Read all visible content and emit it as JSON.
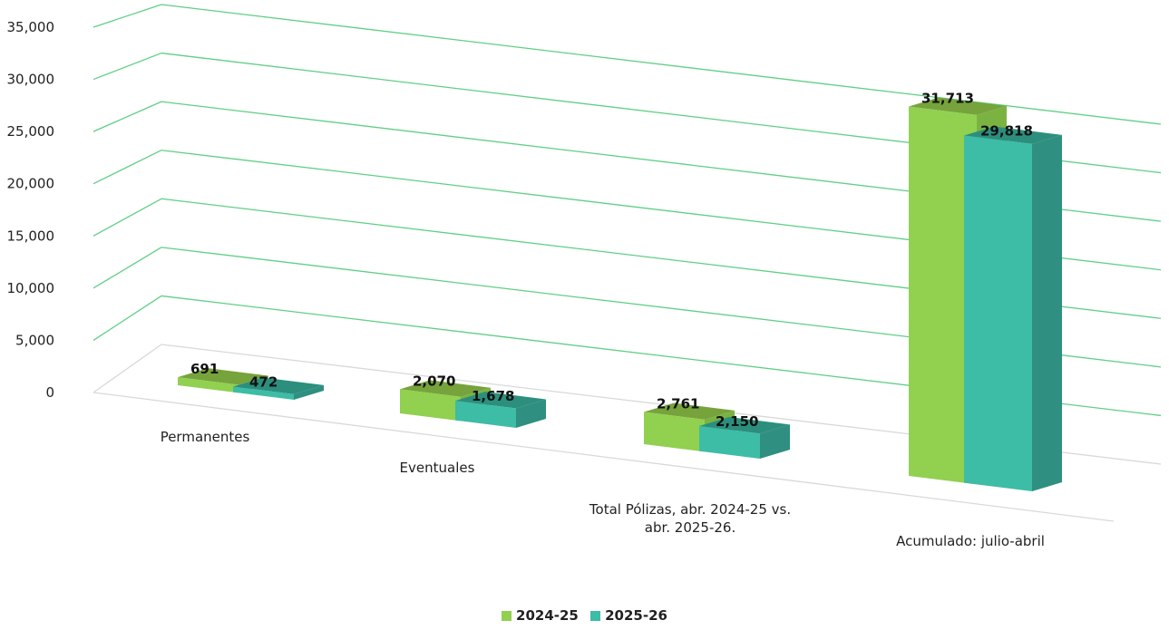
{
  "chart_data": {
    "type": "bar",
    "categories": [
      [
        "Permanentes"
      ],
      [
        "Eventuales"
      ],
      [
        "Total Pólizas, abr.  2024-25  vs.",
        "abr. 2025-26."
      ],
      [
        "Acumulado: julio-abril"
      ]
    ],
    "series": [
      {
        "name": "2024-25",
        "values": [
          691,
          2070,
          2761,
          31713
        ],
        "labels": [
          "691",
          "2,070",
          "2,761",
          "31,713"
        ]
      },
      {
        "name": "2025-26",
        "values": [
          472,
          1678,
          2150,
          29818
        ],
        "labels": [
          "472",
          "1,678",
          "2,150",
          "29,818"
        ]
      }
    ],
    "ylim": [
      0,
      35000
    ],
    "ytick_labels": [
      "0",
      "5,000",
      "10,000",
      "15,000",
      "20,000",
      "25,000",
      "30,000",
      "35,000"
    ],
    "grid": true,
    "legend_position": "bottom",
    "colors": {
      "gridline": "#5fcf86",
      "floor_line": "#d9d9d9",
      "s1_front": "#92d050",
      "s1_top": "#76a33c",
      "s1_side": "#7bb342",
      "s2_front": "#3dbca6",
      "s2_top": "#2c8f7e",
      "s2_side": "#2f8f80"
    }
  },
  "legend": {
    "items": [
      {
        "label": "2024-25",
        "color": "#92d050"
      },
      {
        "label": "2025-26",
        "color": "#3dbca6"
      }
    ]
  }
}
